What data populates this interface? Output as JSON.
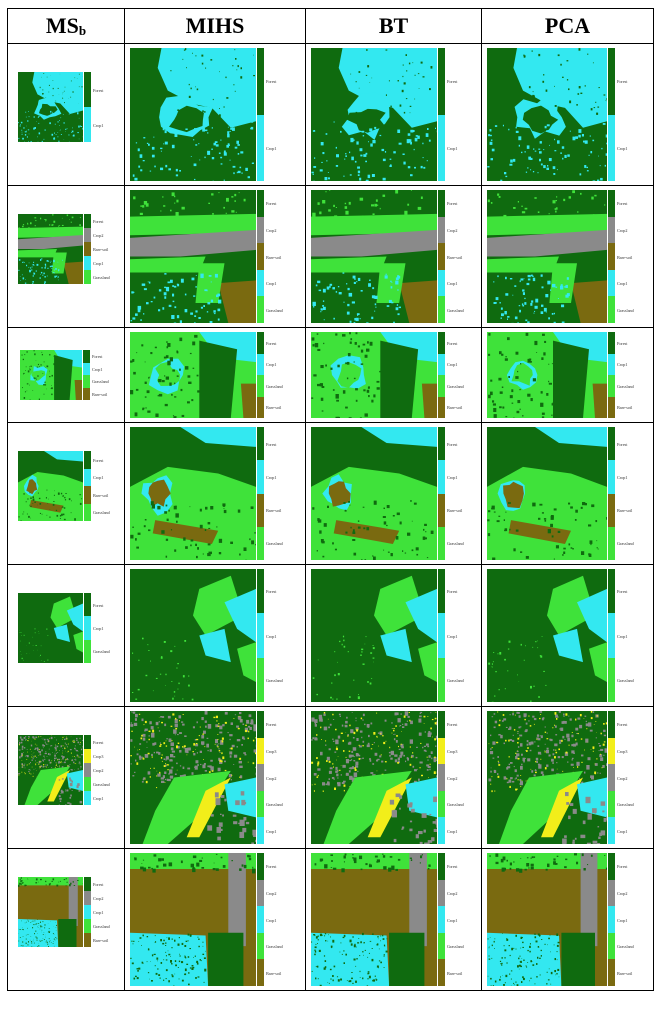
{
  "caption_fragment": "",
  "headers": [
    {
      "main": "MS",
      "sub": "b"
    },
    {
      "main": "MIHS",
      "sub": ""
    },
    {
      "main": "BT",
      "sub": ""
    },
    {
      "main": "PCA",
      "sub": ""
    }
  ],
  "colors": {
    "Forest": "#0f6b0f",
    "Crop1": "#33e8f0",
    "Crop2": "#8a8a8a",
    "Crop3": "#f2ee1a",
    "Bare-soil": "#7a6a10",
    "Grassland": "#3fe23a"
  },
  "rows": [
    {
      "id": "row1",
      "base": "Forest",
      "legend": [
        "Forest",
        "Crop1"
      ]
    },
    {
      "id": "row2",
      "base": "Forest",
      "legend": [
        "Forest",
        "Crop2",
        "Bare-soil",
        "Crop1",
        "Grassland"
      ]
    },
    {
      "id": "row3",
      "base": "Grassland",
      "legend": [
        "Forest",
        "Crop1",
        "Grassland",
        "Bare-soil"
      ]
    },
    {
      "id": "row4",
      "base": "Forest",
      "legend": [
        "Forest",
        "Crop1",
        "Bare-soil",
        "Grassland"
      ]
    },
    {
      "id": "row5",
      "base": "Forest",
      "legend": [
        "Forest",
        "Crop1",
        "Grassland"
      ]
    },
    {
      "id": "row6",
      "base": "Forest",
      "legend": [
        "Forest",
        "Crop3",
        "Crop2",
        "Grassland",
        "Crop1"
      ]
    },
    {
      "id": "row7",
      "base": "Bare-soil",
      "legend": [
        "Forest",
        "Crop2",
        "Crop1",
        "Grassland",
        "Bare-soil"
      ]
    }
  ]
}
